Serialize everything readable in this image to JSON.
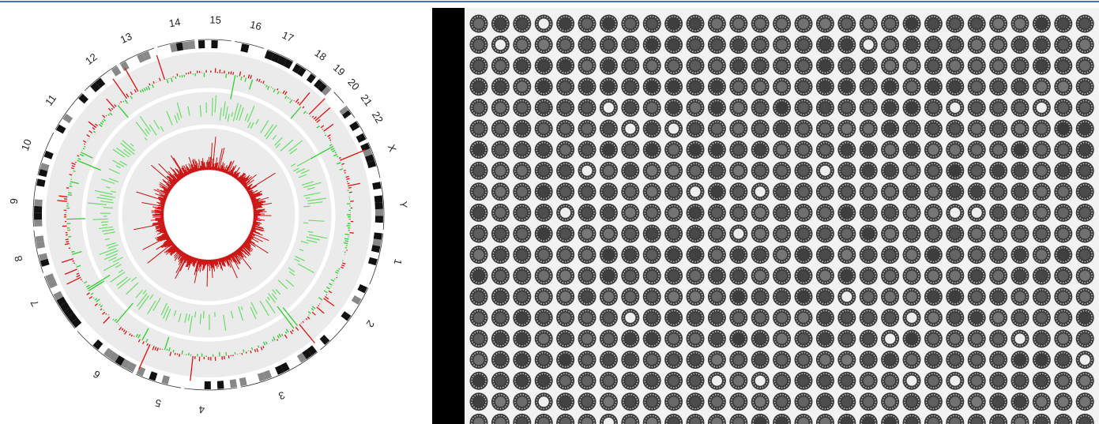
{
  "circos": {
    "chromosomes": [
      "1",
      "2",
      "3",
      "4",
      "5",
      "6",
      "7",
      "8",
      "9",
      "10",
      "11",
      "12",
      "13",
      "14",
      "15",
      "16",
      "17",
      "18",
      "19",
      "20",
      "21",
      "22",
      "X",
      "Y"
    ]
  }
}
